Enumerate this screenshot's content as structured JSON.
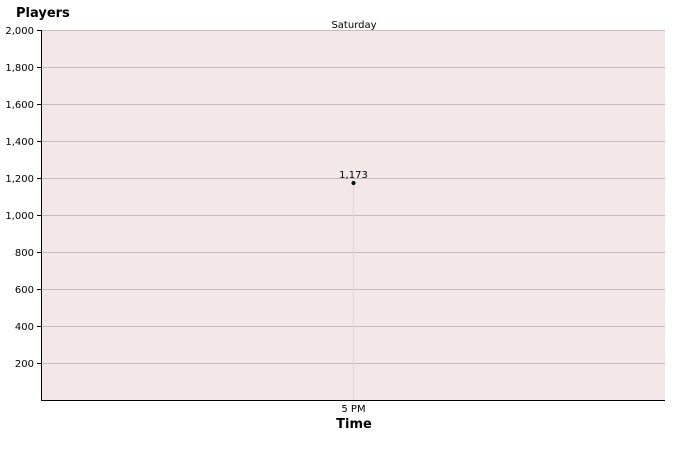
{
  "chart_data": {
    "type": "line",
    "ylabel": "Players",
    "xlabel": "Time",
    "group_label": "Saturday",
    "ylim": [
      0,
      2000
    ],
    "y_ticks": [
      200,
      400,
      600,
      800,
      1000,
      1200,
      1400,
      1600,
      1800,
      2000
    ],
    "y_tick_labels": [
      "200",
      "400",
      "600",
      "800",
      "1,000",
      "1,200",
      "1,400",
      "1,600",
      "1,800",
      "2,000"
    ],
    "categories": [
      "5 PM"
    ],
    "series": [
      {
        "values": [
          1173
        ],
        "data_labels": [
          "1,173"
        ]
      }
    ],
    "grid": true,
    "colors": {
      "plot_background": "#f3e8e7",
      "gridline": "#c9bcbb",
      "axis": "#000000",
      "point": "#000000",
      "drop_line": "#e2d6d5"
    }
  }
}
